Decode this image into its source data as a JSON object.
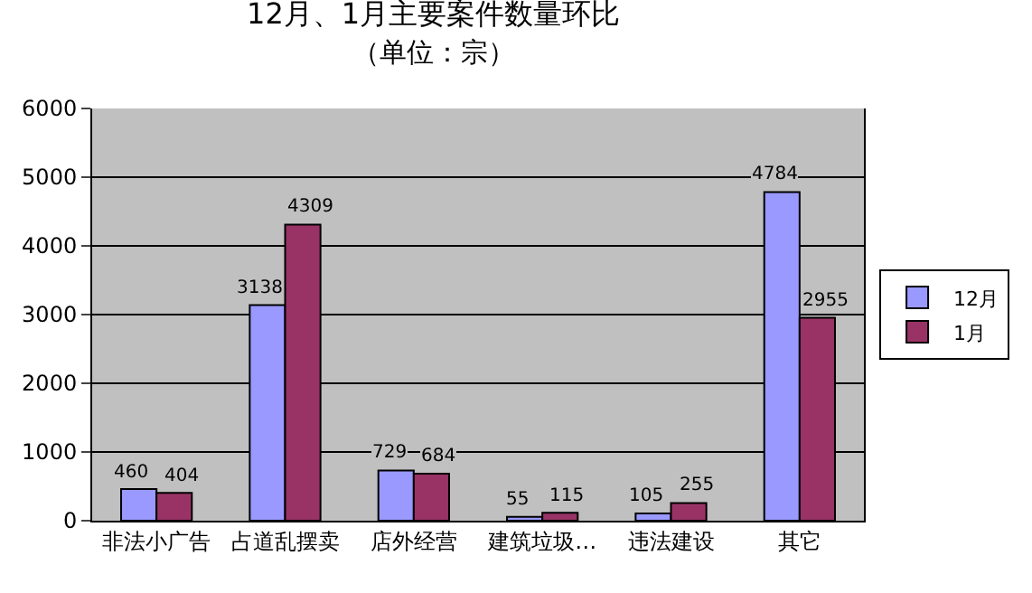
{
  "chart_data": {
    "type": "bar",
    "title": "12月、1月主要案件数量环比",
    "subtitle": "（单位：宗）",
    "categories": [
      "非法小广告",
      "占道乱摆卖",
      "店外经营",
      "建筑垃圾…",
      "违法建设",
      "其它"
    ],
    "series": [
      {
        "name": "12月",
        "color": "#9999ff",
        "values": [
          460,
          3138,
          729,
          55,
          105,
          4784
        ]
      },
      {
        "name": "1月",
        "color": "#993366",
        "values": [
          404,
          4309,
          684,
          115,
          255,
          2955
        ]
      }
    ],
    "ylim": [
      0,
      6000
    ],
    "yticks": [
      0,
      1000,
      2000,
      3000,
      4000,
      5000,
      6000
    ],
    "grid": "y",
    "legend": "right",
    "data_labels": true
  }
}
